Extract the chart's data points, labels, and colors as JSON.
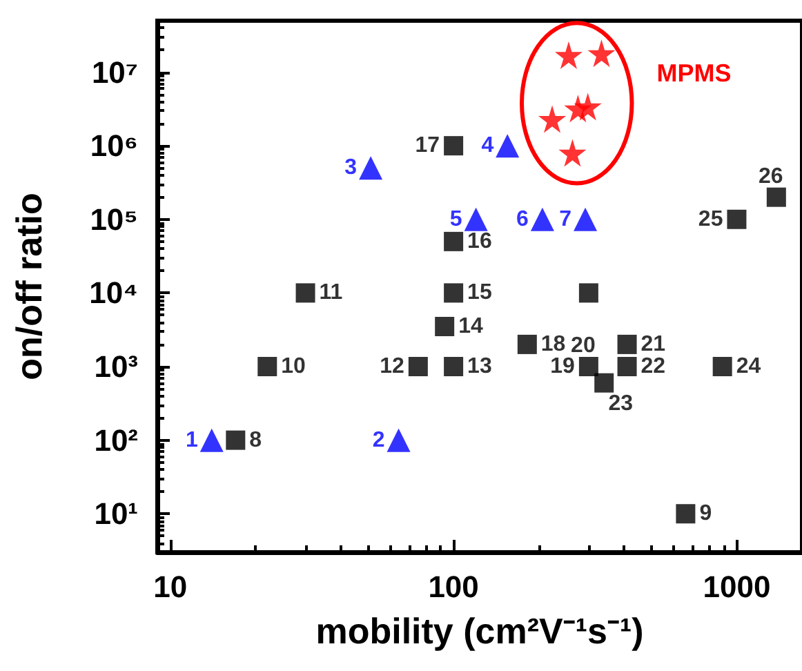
{
  "chart_data": {
    "type": "scatter",
    "xlabel": "mobility (cm²V⁻¹s⁻¹)",
    "ylabel": "on/off ratio",
    "log": "xy",
    "grid": false,
    "legend": false,
    "xlim": [
      9,
      1700
    ],
    "xticks": [
      10,
      100,
      1000
    ],
    "ylim": [
      3,
      50000000
    ],
    "yticks": [
      {
        "value": 10,
        "label": "10¹"
      },
      {
        "value": 100,
        "label": "10²"
      },
      {
        "value": 1000,
        "label": "10³"
      },
      {
        "value": 10000,
        "label": "10⁴"
      },
      {
        "value": 100000,
        "label": "10⁵"
      },
      {
        "value": 1000000,
        "label": "10⁶"
      },
      {
        "value": 10000000,
        "label": "10⁷"
      }
    ],
    "series": [
      {
        "color": "#0000ff",
        "marker": "triangle",
        "x": [
          14,
          64,
          51,
          155,
          120,
          206,
          292
        ],
        "values": [
          100,
          100,
          500000,
          1000000,
          100000,
          100000,
          100000
        ]
      },
      {
        "color": "#000000",
        "marker": "square",
        "x": [
          17,
          660,
          22,
          30,
          75,
          100,
          93,
          100,
          100,
          100,
          182,
          300,
          410,
          410,
          340,
          890,
          1000,
          1380,
          300
        ],
        "values": [
          100,
          10,
          1000,
          10000,
          1000,
          1000,
          3500,
          10000,
          50000,
          1000000,
          2000,
          1000,
          2000,
          1000,
          600,
          1000,
          100000,
          200000,
          10000
        ]
      },
      {
        "name": "MPMS",
        "color": "#ff0000",
        "marker": "star",
        "x": [
          255,
          333,
          223,
          275,
          298,
          263
        ],
        "values": [
          17000000,
          18000000,
          2300000,
          3200000,
          3400000,
          800000
        ]
      }
    ],
    "annotations": [
      {
        "text": "1",
        "x": 14,
        "y": 100
      },
      {
        "text": "2",
        "x": 64,
        "y": 100
      },
      {
        "text": "3",
        "x": 51,
        "y": 500000
      },
      {
        "text": "4",
        "x": 155,
        "y": 1000000
      },
      {
        "text": "5",
        "x": 120,
        "y": 100000
      },
      {
        "text": "6",
        "x": 206,
        "y": 100000
      },
      {
        "text": "7",
        "x": 292,
        "y": 100000
      },
      {
        "text": "8",
        "x": 17,
        "y": 100
      },
      {
        "text": "9",
        "x": 660,
        "y": 10
      },
      {
        "text": "10",
        "x": 22,
        "y": 1000
      },
      {
        "text": "11",
        "x": 30,
        "y": 10000
      },
      {
        "text": "12",
        "x": 75,
        "y": 1000
      },
      {
        "text": "13",
        "x": 100,
        "y": 1000
      },
      {
        "text": "14",
        "x": 93,
        "y": 3500
      },
      {
        "text": "15",
        "x": 100,
        "y": 10000
      },
      {
        "text": "16",
        "x": 100,
        "y": 50000
      },
      {
        "text": "17",
        "x": 100,
        "y": 1000000
      },
      {
        "text": "18",
        "x": 182,
        "y": 2000
      },
      {
        "text": "19",
        "x": 300,
        "y": 1000
      },
      {
        "text": "20",
        "x": 300,
        "y": 1000
      },
      {
        "text": "21",
        "x": 410,
        "y": 2000
      },
      {
        "text": "22",
        "x": 410,
        "y": 1000
      },
      {
        "text": "23",
        "x": 340,
        "y": 600
      },
      {
        "text": "24",
        "x": 890,
        "y": 1000
      },
      {
        "text": "25",
        "x": 1000,
        "y": 100000
      },
      {
        "text": "26",
        "x": 1380,
        "y": 200000
      }
    ]
  }
}
